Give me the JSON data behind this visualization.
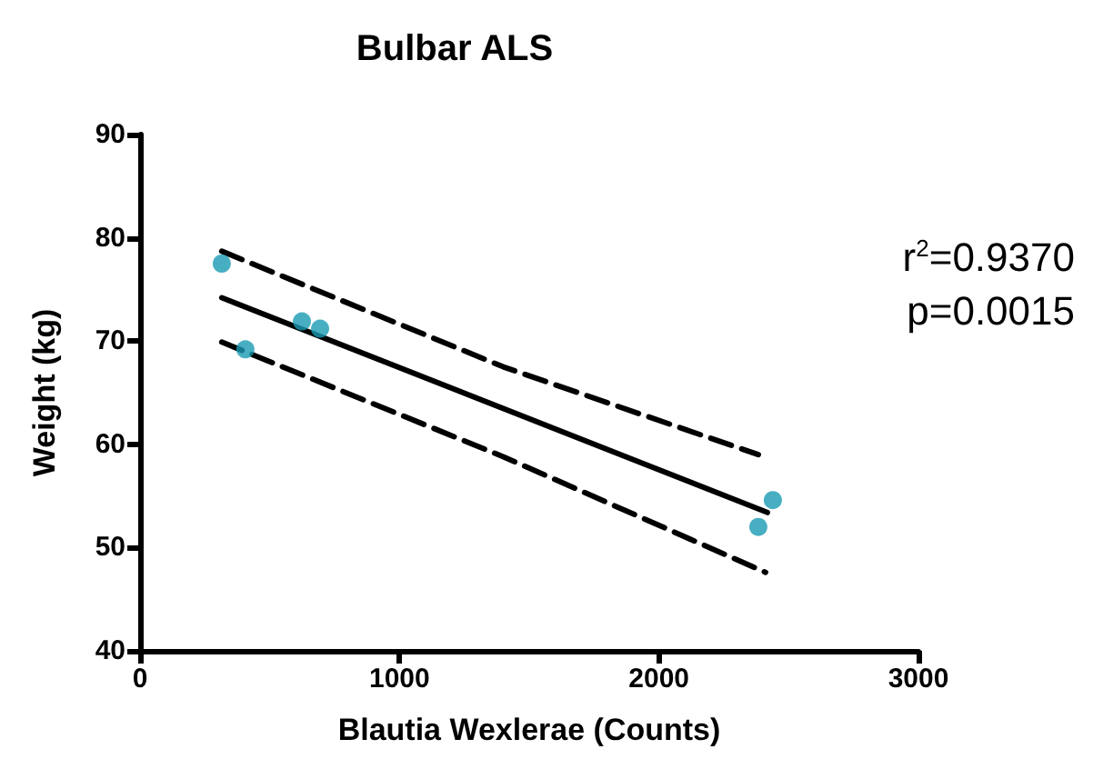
{
  "chart_data": {
    "type": "scatter",
    "title": "Bulbar ALS",
    "xlabel": "Blautia Wexlerae (Counts)",
    "ylabel": "Weight (kg)",
    "xlim": [
      0,
      3000
    ],
    "xticks": [
      0,
      1000,
      2000,
      3000
    ],
    "ylim": [
      40,
      90
    ],
    "yticks": [
      40,
      50,
      60,
      70,
      80,
      90
    ],
    "grid": false,
    "marker": "circle",
    "series": [
      {
        "color": "#1a9bb3",
        "x": [
          315,
          406,
          624,
          694,
          2383,
          2439
        ],
        "values": [
          77.5,
          69.2,
          71.9,
          71.2,
          52.0,
          54.6
        ]
      },
      {
        "type": "line",
        "color": "#000000",
        "marker": "none",
        "line_style": "solid",
        "x": [
          315,
          2418
        ],
        "values": [
          74.2,
          53.4
        ]
      },
      {
        "type": "line",
        "color": "#000000",
        "marker": "none",
        "line_style": "dashed",
        "x": [
          315,
          1400,
          2383
        ],
        "values": [
          78.7,
          67.5,
          59.0
        ]
      },
      {
        "type": "line",
        "color": "#000000",
        "marker": "none",
        "line_style": "dashed",
        "x": [
          315,
          1400,
          2411
        ],
        "values": [
          69.9,
          58.8,
          47.6
        ]
      }
    ],
    "annotations": [
      "r$^{2}$=0.9370",
      "p=0.0015"
    ]
  }
}
